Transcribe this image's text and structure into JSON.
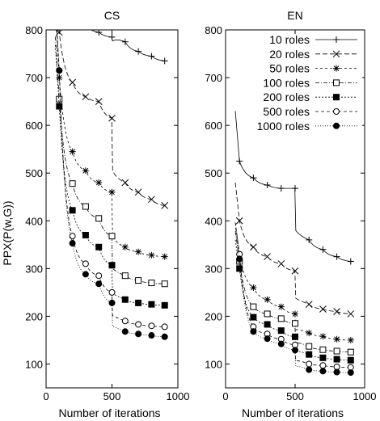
{
  "chart_data": [
    {
      "type": "line",
      "title": "CS",
      "xlabel": "Number of iterations",
      "ylabel": "PPX(P(w,G))",
      "xlim": [
        0,
        1000
      ],
      "ylim": [
        50,
        800
      ],
      "xticks": [
        "0",
        "500",
        "1000"
      ],
      "yticks": [
        "100",
        "200",
        "300",
        "400",
        "500",
        "600",
        "700",
        "800"
      ],
      "grid": false,
      "series": [
        {
          "name": "10 roles",
          "marker": "plus",
          "x": [
            100,
            200,
            300,
            400,
            500,
            600,
            700,
            800,
            900
          ],
          "y": [
            860,
            830,
            810,
            795,
            785,
            775,
            755,
            745,
            735
          ]
        },
        {
          "name": "20 roles",
          "marker": "cross",
          "x": [
            100,
            200,
            300,
            400,
            500,
            600,
            700,
            800,
            900
          ],
          "y": [
            795,
            690,
            660,
            650,
            615,
            480,
            460,
            445,
            432
          ]
        },
        {
          "name": "50 roles",
          "marker": "star",
          "x": [
            100,
            200,
            300,
            400,
            500,
            600,
            700,
            800,
            900
          ],
          "y": [
            700,
            545,
            505,
            480,
            460,
            345,
            335,
            328,
            325
          ]
        },
        {
          "name": "100 roles",
          "marker": "open-square",
          "x": [
            100,
            200,
            300,
            400,
            500,
            600,
            700,
            800,
            900
          ],
          "y": [
            655,
            478,
            430,
            405,
            368,
            285,
            275,
            270,
            268
          ]
        },
        {
          "name": "200 roles",
          "marker": "filled-square",
          "x": [
            100,
            200,
            300,
            400,
            500,
            600,
            700,
            800,
            900
          ],
          "y": [
            640,
            422,
            370,
            345,
            307,
            235,
            228,
            225,
            223
          ]
        },
        {
          "name": "500 roles",
          "marker": "open-circle",
          "x": [
            100,
            200,
            300,
            400,
            500,
            600,
            700,
            800,
            900
          ],
          "y": [
            715,
            368,
            310,
            285,
            250,
            190,
            183,
            180,
            178
          ]
        },
        {
          "name": "1000 roles",
          "marker": "filled-circle",
          "x": [
            100,
            200,
            300,
            400,
            500,
            600,
            700,
            800,
            900
          ],
          "y": [
            715,
            353,
            288,
            268,
            228,
            168,
            163,
            160,
            157
          ]
        }
      ]
    },
    {
      "type": "line",
      "title": "EN",
      "xlabel": "Number of iterations",
      "ylabel": "",
      "xlim": [
        0,
        1000
      ],
      "ylim": [
        50,
        800
      ],
      "xticks": [
        "0",
        "500",
        "1000"
      ],
      "yticks": [
        "100",
        "200",
        "300",
        "400",
        "500",
        "600",
        "700",
        "800"
      ],
      "grid": false,
      "legend": "top-right",
      "series": [
        {
          "name": "10 roles",
          "marker": "plus",
          "x": [
            100,
            200,
            300,
            400,
            500,
            600,
            700,
            800,
            900
          ],
          "y": [
            525,
            490,
            475,
            468,
            468,
            360,
            340,
            325,
            315
          ]
        },
        {
          "name": "20 roles",
          "marker": "cross",
          "x": [
            100,
            200,
            300,
            400,
            500,
            600,
            700,
            800,
            900
          ],
          "y": [
            400,
            345,
            325,
            310,
            295,
            225,
            215,
            210,
            205
          ]
        },
        {
          "name": "50 roles",
          "marker": "star",
          "x": [
            100,
            200,
            300,
            400,
            500,
            600,
            700,
            800,
            900
          ],
          "y": [
            330,
            260,
            235,
            220,
            205,
            165,
            158,
            152,
            150
          ]
        },
        {
          "name": "100 roles",
          "marker": "open-square",
          "x": [
            100,
            200,
            300,
            400,
            500,
            600,
            700,
            800,
            900
          ],
          "y": [
            315,
            220,
            205,
            195,
            185,
            137,
            130,
            127,
            125
          ]
        },
        {
          "name": "200 roles",
          "marker": "filled-square",
          "x": [
            100,
            200,
            300,
            400,
            500,
            600,
            700,
            800,
            900
          ],
          "y": [
            300,
            198,
            183,
            170,
            157,
            120,
            113,
            110,
            108
          ]
        },
        {
          "name": "500 roles",
          "marker": "open-circle",
          "x": [
            100,
            200,
            300,
            400,
            500,
            600,
            700,
            800,
            900
          ],
          "y": [
            330,
            178,
            163,
            152,
            140,
            100,
            97,
            94,
            93
          ]
        },
        {
          "name": "1000 roles",
          "marker": "filled-circle",
          "x": [
            100,
            200,
            300,
            400,
            500,
            600,
            700,
            800,
            900
          ],
          "y": [
            320,
            168,
            153,
            142,
            129,
            88,
            85,
            83,
            82
          ]
        }
      ]
    }
  ]
}
